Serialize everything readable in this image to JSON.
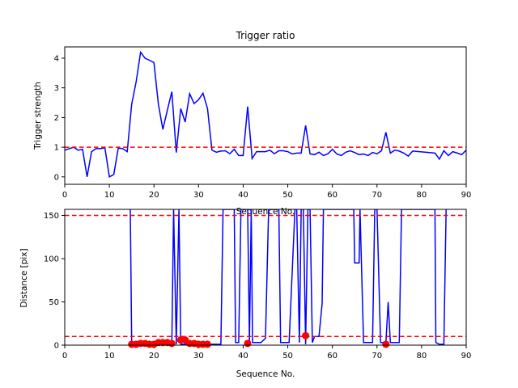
{
  "chart_data": [
    {
      "type": "line",
      "title": "Trigger ratio",
      "xlabel": "Sequence No.",
      "ylabel": "Trigger strength",
      "xlim": [
        0,
        90
      ],
      "ylim": [
        -0.25,
        4.38
      ],
      "xticks": [
        0,
        10,
        20,
        30,
        40,
        50,
        60,
        70,
        80,
        90
      ],
      "yticks": [
        0,
        1,
        2,
        3,
        4
      ],
      "grid": false,
      "series": [
        {
          "color": "#0000ff",
          "style": "solid",
          "x": [
            0,
            1,
            2,
            3,
            4,
            5,
            6,
            7,
            8,
            9,
            10,
            11,
            12,
            13,
            14,
            15,
            16,
            17,
            18,
            19,
            20,
            21,
            22,
            23,
            24,
            25,
            26,
            27,
            28,
            29,
            30,
            31,
            32,
            33,
            34,
            35,
            36,
            37,
            38,
            39,
            40,
            41,
            42,
            43,
            44,
            45,
            46,
            47,
            48,
            49,
            50,
            51,
            52,
            53,
            54,
            55,
            56,
            57,
            58,
            59,
            60,
            61,
            62,
            63,
            64,
            65,
            66,
            67,
            68,
            69,
            70,
            71,
            72,
            73,
            74,
            75,
            76,
            77,
            78,
            83,
            84,
            85,
            86,
            87,
            88,
            89,
            90
          ],
          "y": [
            0.9,
            0.95,
            1.0,
            0.9,
            0.93,
            0.0,
            0.85,
            0.95,
            0.95,
            0.98,
            0.0,
            0.08,
            0.97,
            0.95,
            0.85,
            2.45,
            3.2,
            4.2,
            4.0,
            3.93,
            3.85,
            2.45,
            1.6,
            2.25,
            2.87,
            0.82,
            2.3,
            1.85,
            2.8,
            2.47,
            2.6,
            2.82,
            2.3,
            0.9,
            0.83,
            0.87,
            0.88,
            0.78,
            0.93,
            0.72,
            0.72,
            2.37,
            0.62,
            0.85,
            0.85,
            0.85,
            0.9,
            0.78,
            0.88,
            0.88,
            0.85,
            0.77,
            0.8,
            0.8,
            1.73,
            0.77,
            0.75,
            0.83,
            0.72,
            0.78,
            0.93,
            0.77,
            0.72,
            0.83,
            0.88,
            0.82,
            0.75,
            0.77,
            0.72,
            0.82,
            0.78,
            0.88,
            1.5,
            0.8,
            0.9,
            0.87,
            0.8,
            0.7,
            0.87,
            0.8,
            0.6,
            0.88,
            0.72,
            0.85,
            0.8,
            0.75,
            0.9
          ]
        },
        {
          "color": "#ff0000",
          "style": "dashed",
          "x": [
            0,
            90
          ],
          "y": [
            1,
            1
          ]
        }
      ]
    },
    {
      "type": "line",
      "title": "",
      "xlabel": "Sequence No.",
      "ylabel": "Distance [pix]",
      "xlim": [
        0,
        90
      ],
      "ylim": [
        0,
        157
      ],
      "xticks": [
        0,
        10,
        20,
        30,
        40,
        50,
        60,
        70,
        80,
        90
      ],
      "yticks": [
        0,
        50,
        100,
        150
      ],
      "grid": false,
      "series": [
        {
          "color": "#0000ff",
          "style": "solid",
          "x": [
            14.7,
            15,
            16,
            17,
            18,
            19,
            20,
            21,
            22,
            23,
            24,
            24.4,
            25,
            25.6,
            26,
            27,
            28,
            29,
            30,
            31,
            32,
            33,
            34,
            35,
            35.5,
            38,
            38.3,
            39,
            39.5,
            41,
            41.4,
            41.8,
            42.1,
            43,
            44,
            45,
            45.7,
            46,
            48,
            48.4,
            49,
            50.3,
            51.6,
            52,
            52.6,
            53,
            53.5,
            54,
            54.5,
            55,
            55.5,
            56,
            57,
            57.7,
            58,
            64.8,
            65,
            66,
            66.2,
            67,
            69,
            69.5,
            70,
            70.8,
            71.2,
            72,
            72.5,
            73,
            74,
            75,
            75.5,
            83,
            83.2,
            84,
            85,
            85.5
          ],
          "y": [
            157,
            1,
            1,
            1,
            1,
            1,
            1,
            1,
            1,
            1,
            1,
            157,
            1,
            157,
            1,
            1,
            1,
            1,
            1,
            1,
            1,
            1,
            1,
            1,
            157,
            157,
            3,
            3,
            157,
            157,
            3,
            157,
            3,
            3,
            3,
            8,
            157,
            157,
            157,
            3,
            3,
            3,
            157,
            157,
            3,
            157,
            157,
            1,
            157,
            157,
            3,
            10,
            10,
            48,
            157,
            157,
            95,
            95,
            157,
            3,
            3,
            157,
            157,
            3,
            3,
            3,
            50,
            3,
            3,
            3,
            157,
            157,
            3,
            1,
            1,
            157
          ]
        },
        {
          "color": "#ff0000",
          "style": "dashed",
          "x": [
            0,
            90
          ],
          "y": [
            150,
            150
          ]
        },
        {
          "color": "#ff0000",
          "style": "dashed",
          "x": [
            0,
            90
          ],
          "y": [
            10,
            10
          ]
        },
        {
          "color": "#ff0000",
          "style": "markers",
          "x": [
            15,
            16,
            17,
            18,
            19,
            20,
            21,
            22,
            23,
            24,
            26,
            27,
            28,
            29,
            30,
            31,
            32,
            41,
            54,
            72
          ],
          "y": [
            1,
            1,
            2,
            2,
            1,
            1,
            3,
            3,
            3,
            2,
            6,
            6,
            2,
            2,
            1,
            1,
            1,
            2,
            11,
            1
          ]
        }
      ]
    }
  ]
}
